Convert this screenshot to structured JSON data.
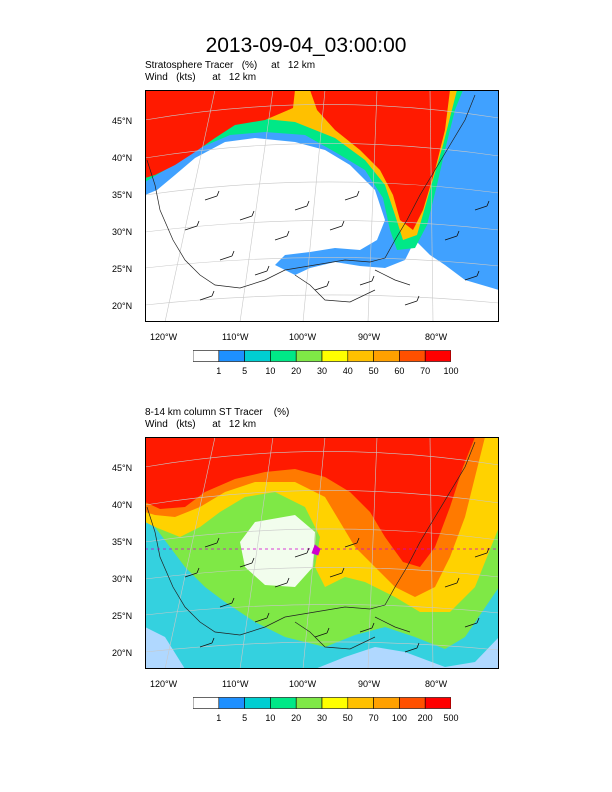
{
  "figure_title": "2013-09-04_03:00:00",
  "panels": [
    {
      "title_line1": "Stratosphere Tracer   (%)     at   12 km",
      "title_line2": "Wind   (kts)      at   12 km",
      "lat_labels": [
        "45°N",
        "40°N",
        "35°N",
        "30°N",
        "25°N",
        "20°N"
      ],
      "lon_labels": [
        "120°W",
        "110°W",
        "100°W",
        "90°W",
        "80°W"
      ],
      "colorbar": {
        "colors": [
          "#ffffff",
          "#1e90ff",
          "#00ced1",
          "#00e887",
          "#7fe846",
          "#ffff00",
          "#ffc000",
          "#ffa000",
          "#ff5000",
          "#ff0000"
        ],
        "labels": [
          "1",
          "5",
          "10",
          "20",
          "30",
          "40",
          "50",
          "60",
          "70",
          "100"
        ]
      }
    },
    {
      "title_line1": "8-14 km column ST Tracer    (%)",
      "title_line2": "Wind   (kts)      at   12 km",
      "lat_labels": [
        "45°N",
        "40°N",
        "35°N",
        "30°N",
        "25°N",
        "20°N"
      ],
      "lon_labels": [
        "120°W",
        "110°W",
        "100°W",
        "90°W",
        "80°W"
      ],
      "colorbar": {
        "colors": [
          "#ffffff",
          "#1e90ff",
          "#00ced1",
          "#00e887",
          "#7fe846",
          "#ffff00",
          "#ffc000",
          "#ffa000",
          "#ff5000",
          "#ff0000"
        ],
        "labels": [
          "1",
          "5",
          "10",
          "20",
          "30",
          "50",
          "70",
          "100",
          "200",
          "500"
        ]
      }
    }
  ]
}
